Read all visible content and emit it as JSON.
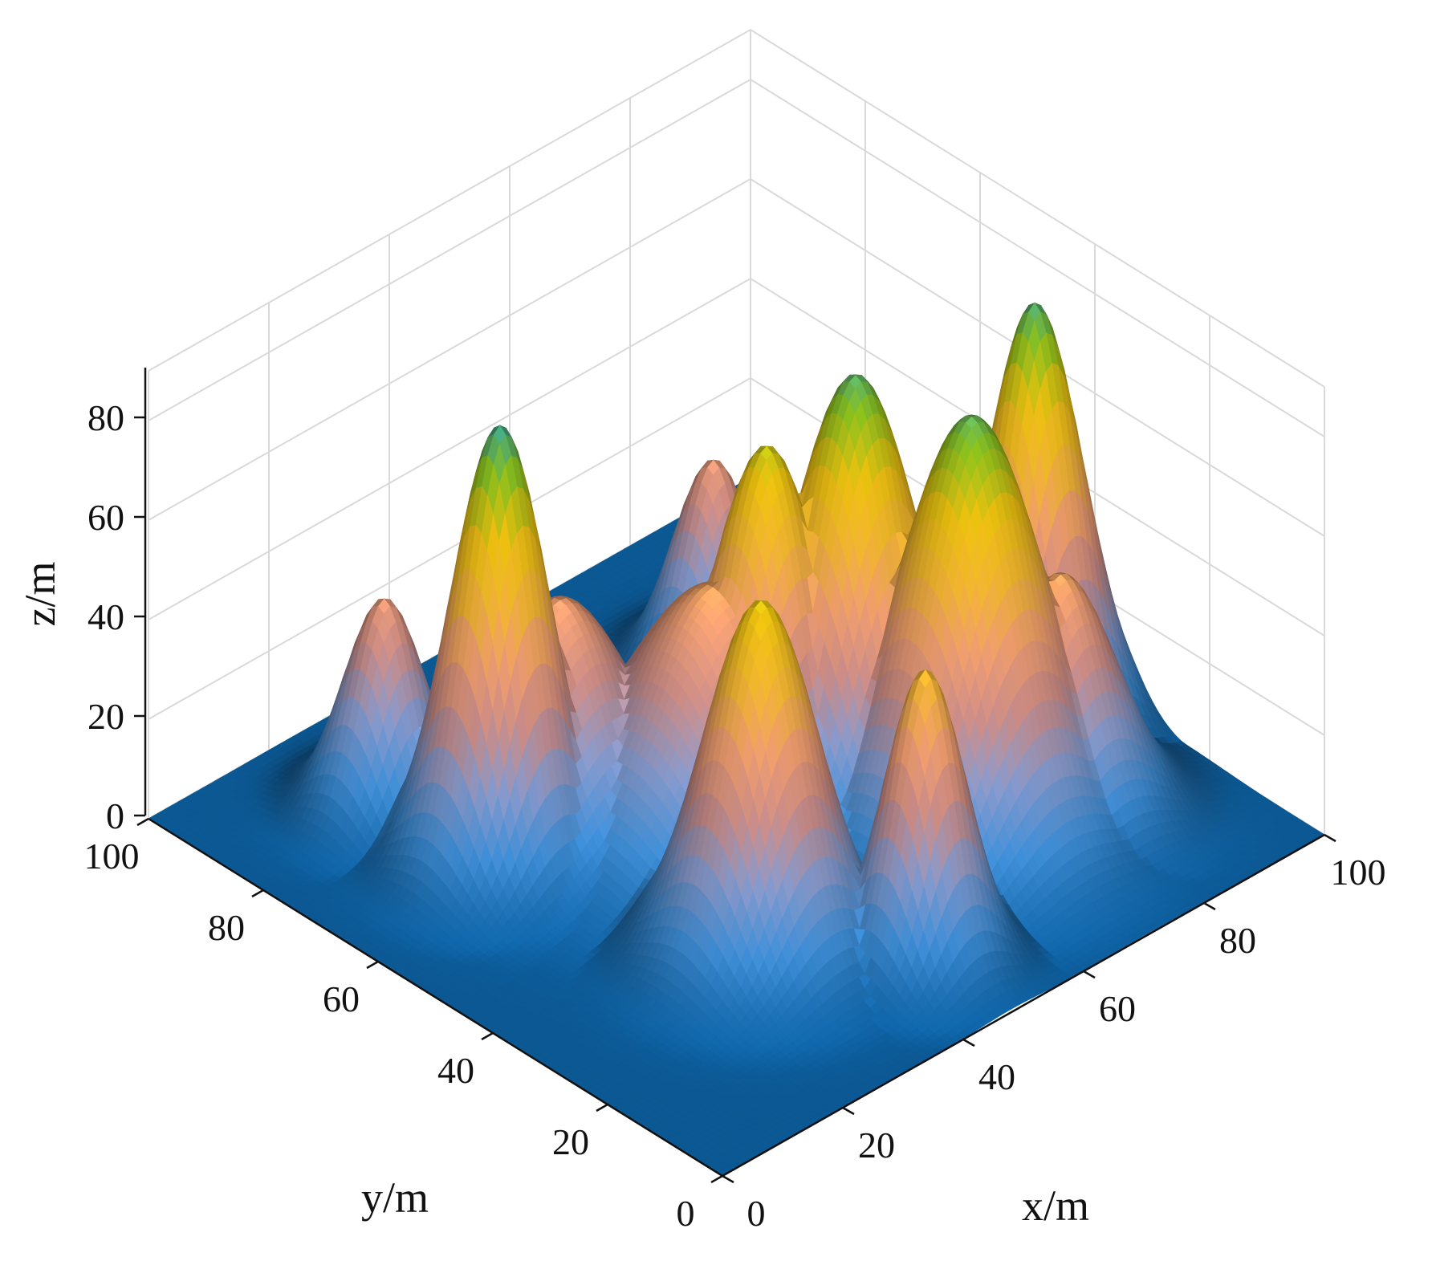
{
  "chart_data": {
    "type": "surface",
    "title": "",
    "xlabel": "x/m",
    "ylabel": "y/m",
    "zlabel": "z/m",
    "xlim": [
      0,
      100
    ],
    "ylim": [
      0,
      100
    ],
    "zlim": [
      0,
      90
    ],
    "x_ticks": [
      0,
      20,
      40,
      60,
      80,
      100
    ],
    "y_ticks": [
      0,
      20,
      40,
      60,
      80,
      100
    ],
    "z_ticks": [
      0,
      20,
      40,
      60,
      80
    ],
    "x_tick_labels": [
      "0",
      "20",
      "40",
      "60",
      "80",
      "100"
    ],
    "y_tick_labels": [
      "0",
      "20",
      "40",
      "60",
      "80",
      "100"
    ],
    "z_tick_labels": [
      "0",
      "20",
      "40",
      "60",
      "80"
    ],
    "grid": true,
    "colormap": [
      "#0c5c9a",
      "#3f8fd8",
      "#8a9ccf",
      "#d08f8a",
      "#f4a071",
      "#f6b832",
      "#f1c40f",
      "#8cc21d",
      "#1e9ab8"
    ],
    "peaks": [
      {
        "x": 25,
        "y": 65,
        "height": 87,
        "spread": 6
      },
      {
        "x": 22,
        "y": 82,
        "height": 42,
        "spread": 5
      },
      {
        "x": 35,
        "y": 65,
        "height": 45,
        "spread": 9
      },
      {
        "x": 35,
        "y": 30,
        "height": 70,
        "spread": 7
      },
      {
        "x": 48,
        "y": 52,
        "height": 48,
        "spread": 11
      },
      {
        "x": 55,
        "y": 50,
        "height": 73,
        "spread": 7
      },
      {
        "x": 48,
        "y": 15,
        "height": 58,
        "spread": 5
      },
      {
        "x": 65,
        "y": 45,
        "height": 84,
        "spread": 8
      },
      {
        "x": 70,
        "y": 30,
        "height": 83,
        "spread": 9
      },
      {
        "x": 80,
        "y": 55,
        "height": 45,
        "spread": 5
      },
      {
        "x": 80,
        "y": 25,
        "height": 48,
        "spread": 7
      },
      {
        "x": 90,
        "y": 40,
        "height": 85,
        "spread": 6
      },
      {
        "x": 70,
        "y": 75,
        "height": 42,
        "spread": 5
      }
    ]
  }
}
